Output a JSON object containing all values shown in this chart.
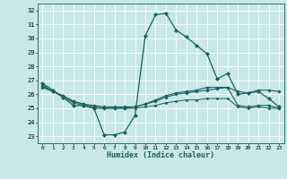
{
  "title": "",
  "xlabel": "Humidex (Indice chaleur)",
  "ylabel": "",
  "background_color": "#c8e8e8",
  "grid_color": "#ffffff",
  "line_color": "#1a6060",
  "xlim": [
    -0.5,
    23.5
  ],
  "ylim": [
    22.5,
    32.5
  ],
  "yticks": [
    23,
    24,
    25,
    26,
    27,
    28,
    29,
    30,
    31,
    32
  ],
  "xticks": [
    0,
    1,
    2,
    3,
    4,
    5,
    6,
    7,
    8,
    9,
    10,
    11,
    12,
    13,
    14,
    15,
    16,
    17,
    18,
    19,
    20,
    21,
    22,
    23
  ],
  "series": [
    {
      "x": [
        0,
        1,
        2,
        3,
        4,
        5,
        6,
        7,
        8,
        9,
        10,
        11,
        12,
        13,
        14,
        15,
        16,
        17,
        18,
        19,
        20,
        21,
        22,
        23
      ],
      "y": [
        26.8,
        26.3,
        25.8,
        25.2,
        25.2,
        25.0,
        23.1,
        23.1,
        23.3,
        24.5,
        30.2,
        31.7,
        31.8,
        30.6,
        30.1,
        29.5,
        28.9,
        27.1,
        27.5,
        26.0,
        26.1,
        26.2,
        25.7,
        25.1
      ],
      "marker": "D",
      "markersize": 2.2,
      "linewidth": 0.9
    },
    {
      "x": [
        0,
        1,
        2,
        3,
        4,
        5,
        6,
        7,
        8,
        9,
        10,
        11,
        12,
        13,
        14,
        15,
        16,
        17,
        18,
        19,
        20,
        21,
        22,
        23
      ],
      "y": [
        26.5,
        26.2,
        25.9,
        25.5,
        25.3,
        25.2,
        25.1,
        25.1,
        25.1,
        25.1,
        25.3,
        25.5,
        25.8,
        26.0,
        26.1,
        26.2,
        26.3,
        26.4,
        26.5,
        26.2,
        26.1,
        26.3,
        26.3,
        26.2
      ],
      "marker": "D",
      "markersize": 1.8,
      "linewidth": 0.8
    },
    {
      "x": [
        0,
        1,
        2,
        3,
        4,
        5,
        6,
        7,
        8,
        9,
        10,
        11,
        12,
        13,
        14,
        15,
        16,
        17,
        18,
        19,
        20,
        21,
        22,
        23
      ],
      "y": [
        26.6,
        26.2,
        25.9,
        25.5,
        25.3,
        25.1,
        25.0,
        25.0,
        25.0,
        25.1,
        25.3,
        25.6,
        25.9,
        26.1,
        26.2,
        26.3,
        26.5,
        26.5,
        26.5,
        25.2,
        25.1,
        25.2,
        25.2,
        25.0
      ],
      "marker": "D",
      "markersize": 1.8,
      "linewidth": 0.8
    },
    {
      "x": [
        0,
        1,
        2,
        3,
        4,
        5,
        6,
        7,
        8,
        9,
        10,
        11,
        12,
        13,
        14,
        15,
        16,
        17,
        18,
        19,
        20,
        21,
        22,
        23
      ],
      "y": [
        26.7,
        26.2,
        25.8,
        25.4,
        25.2,
        25.0,
        25.0,
        25.0,
        25.0,
        25.0,
        25.1,
        25.2,
        25.4,
        25.5,
        25.6,
        25.6,
        25.7,
        25.7,
        25.7,
        25.1,
        25.0,
        25.1,
        25.0,
        25.0
      ],
      "marker": "D",
      "markersize": 1.6,
      "linewidth": 0.7
    }
  ]
}
